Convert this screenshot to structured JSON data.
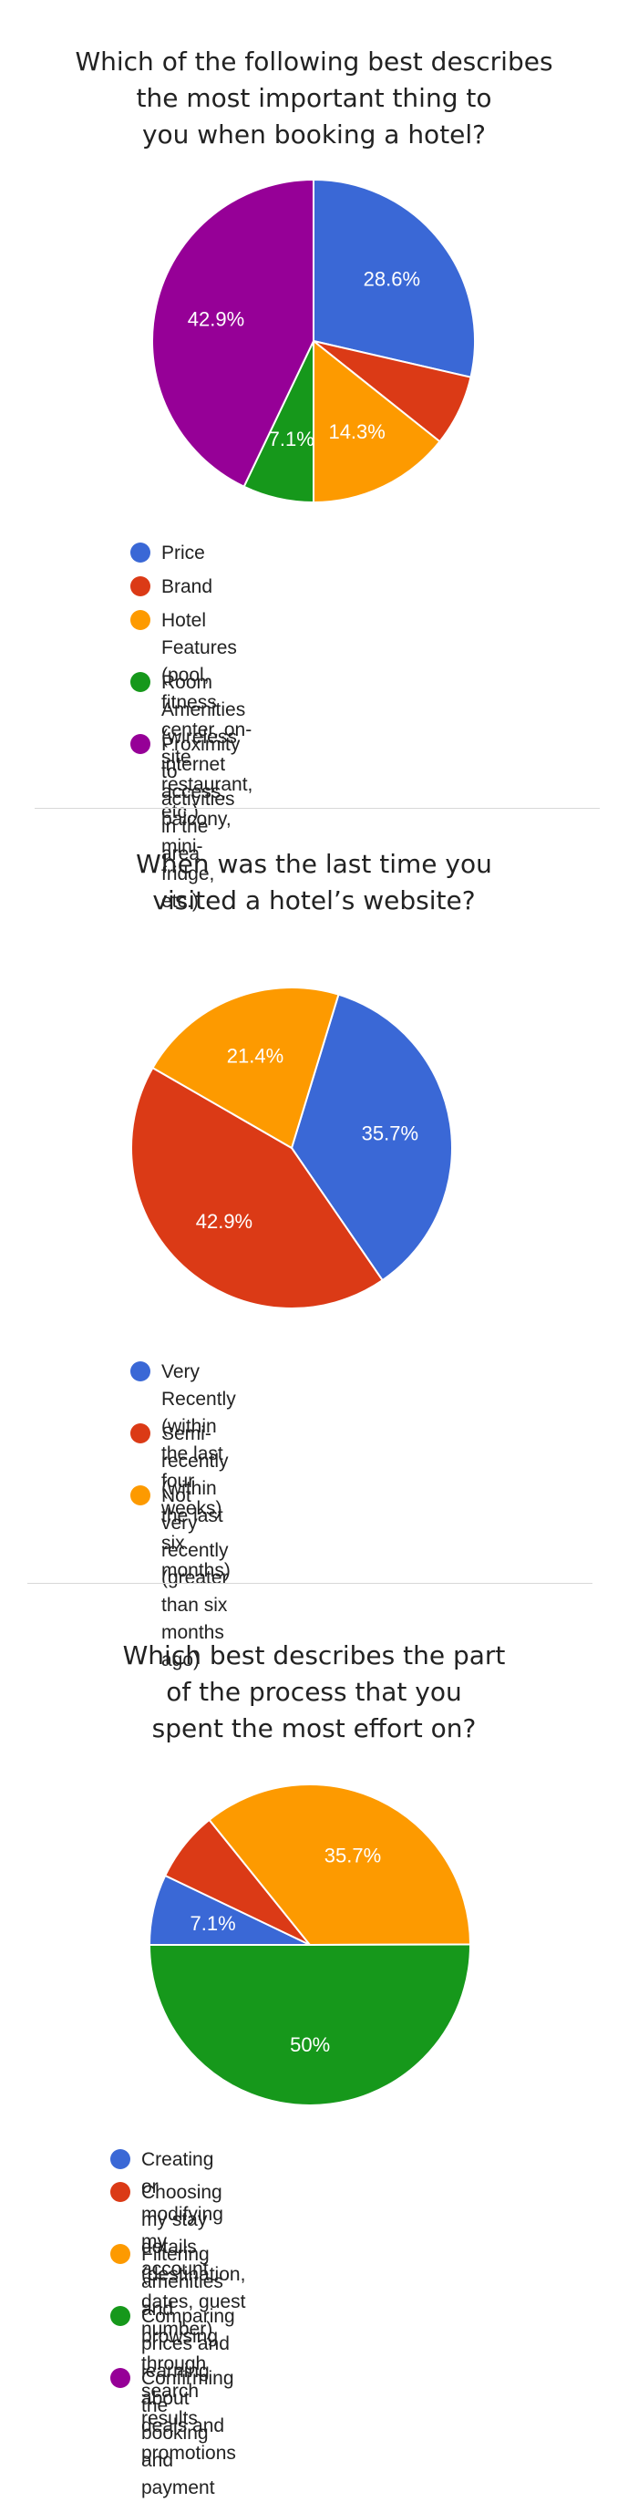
{
  "chart_data": [
    {
      "type": "pie",
      "title": "Which of the following best describes\nthe most important thing to\nyou when booking a hotel?",
      "categories": [
        "Price",
        "Brand",
        "Hotel Features (pool, fitness center, on-\nsite restaurant, etc.)",
        "Room Amenities (wireless internet\naccess, balcony, mini-fridge, etc.)",
        "Proximity to activities in the area"
      ],
      "values": [
        28.6,
        7.1,
        14.3,
        7.1,
        42.9
      ],
      "labels": [
        "28.6%",
        "",
        "14.3%",
        "7.1%",
        "42.9%"
      ],
      "colors": [
        "#3a68d6",
        "#db3a16",
        "#fd9a00",
        "#16981b",
        "#960097"
      ],
      "legend_position": "bottom"
    },
    {
      "type": "pie",
      "title": "When was the last time you\nvisited a hotel’s website?",
      "categories": [
        "Very Recently (within the last four\nweeks)",
        "Semi-recently (within the last six\nmonths)",
        "Not very recently (greater than six\nmonths ago)"
      ],
      "values": [
        35.7,
        42.9,
        21.4
      ],
      "labels": [
        "35.7%",
        "42.9%",
        "21.4%"
      ],
      "colors": [
        "#3a68d6",
        "#db3a16",
        "#fd9a00"
      ],
      "legend_position": "bottom"
    },
    {
      "type": "pie",
      "title": "Which best describes the part\nof the process that you\nspent the  most effort on?",
      "categories": [
        "Creating or modifying my account",
        "Choosing my stay details (destination,\ndates, guest number)",
        "Filtering amenities and browsing through\nsearch results",
        "Comparing prices and learning about\ndeals and promotions",
        "Confirming the booking and payment"
      ],
      "values": [
        7.1,
        7.1,
        35.7,
        50,
        0
      ],
      "labels": [
        "7.1%",
        "",
        "35.7%",
        "50%",
        ""
      ],
      "colors": [
        "#3a68d6",
        "#db3a16",
        "#fd9a00",
        "#16981b",
        "#960097"
      ],
      "legend_position": "bottom"
    }
  ]
}
